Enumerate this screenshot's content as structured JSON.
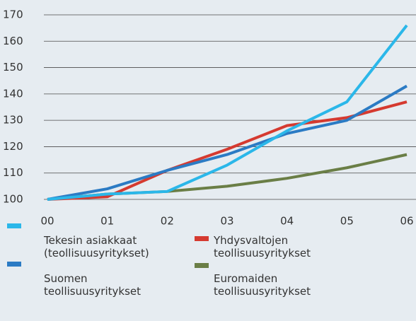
{
  "chart_data": {
    "type": "line",
    "categories": [
      "00",
      "01",
      "02",
      "03",
      "04",
      "05",
      "06"
    ],
    "series": [
      {
        "name": "Tekesin asiakkaat (teollisuusyritykset)",
        "color": "#2bb7e9",
        "values": [
          100,
          102,
          103,
          113,
          126,
          137,
          166
        ]
      },
      {
        "name": "Suomen teollisuusyritykset",
        "color": "#2b7bc4",
        "values": [
          100,
          104,
          111,
          117,
          125,
          130,
          143
        ]
      },
      {
        "name": "Yhdysvaltojen teollisuusyritykset",
        "color": "#d53a30",
        "values": [
          100,
          101,
          111,
          119,
          128,
          131,
          137
        ]
      },
      {
        "name": "Euromaiden teollisuusyritykset",
        "color": "#6a7e46",
        "values": [
          100,
          102,
          103,
          105,
          108,
          112,
          117
        ]
      }
    ],
    "ylim": [
      100,
      170
    ],
    "yticks": [
      100,
      110,
      120,
      130,
      140,
      150,
      160,
      170
    ],
    "grid": true
  }
}
